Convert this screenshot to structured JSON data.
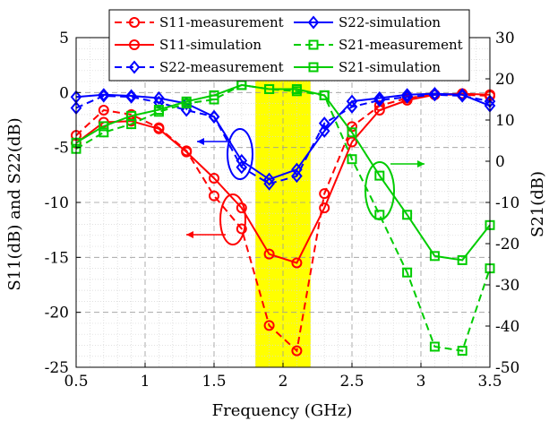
{
  "chart_data": {
    "type": "line",
    "xlabel": "Frequency (GHz)",
    "ylabel_left": "S11(dB) and S22(dB)",
    "ylabel_right": "S21(dB)",
    "xlim": [
      0.5,
      3.5
    ],
    "ylim_left": [
      -25,
      5
    ],
    "ylim_right": [
      -50,
      30
    ],
    "x_ticks": [
      0.5,
      1,
      1.5,
      2,
      2.5,
      3,
      3.5
    ],
    "x_tick_labels": [
      "0.5",
      "1",
      "1.5",
      "2",
      "2.5",
      "3",
      "3.5"
    ],
    "y_left_ticks": [
      -25,
      -20,
      -15,
      -10,
      -5,
      0,
      5
    ],
    "y_left_tick_labels": [
      "-25",
      "-20",
      "-15",
      "-10",
      "-5",
      "0",
      "5"
    ],
    "y_right_ticks": [
      -50,
      -40,
      -30,
      -20,
      -10,
      0,
      10,
      20,
      30
    ],
    "y_right_tick_labels": [
      "-50",
      "-40",
      "-30",
      "-20",
      "-10",
      "0",
      "10",
      "20",
      "30"
    ],
    "grid": true,
    "legend_position": "top",
    "highlight_band": {
      "x": [
        1.8,
        2.2
      ],
      "color": "#ffff00"
    },
    "series": [
      {
        "name": "S11-measurement",
        "axis": "left",
        "color": "#ff0000",
        "dash": "dashed",
        "marker": "circle",
        "x": [
          0.5,
          0.7,
          0.9,
          1.1,
          1.3,
          1.5,
          1.7,
          1.9,
          2.1,
          2.3,
          2.5,
          2.7,
          2.9,
          3.1,
          3.3,
          3.5
        ],
        "y": [
          -3.9,
          -1.6,
          -2.0,
          -3.2,
          -5.3,
          -9.4,
          -12.4,
          -21.2,
          -23.5,
          -9.2,
          -3.1,
          -1.2,
          -0.5,
          -0.2,
          -0.2,
          -0.3
        ]
      },
      {
        "name": "S11-simulation",
        "axis": "left",
        "color": "#ff0000",
        "dash": "solid",
        "marker": "circle",
        "x": [
          0.5,
          0.7,
          0.9,
          1.1,
          1.3,
          1.5,
          1.7,
          1.9,
          2.1,
          2.3,
          2.5,
          2.7,
          2.9,
          3.1,
          3.3,
          3.5
        ],
        "y": [
          -4.6,
          -2.7,
          -2.6,
          -3.3,
          -5.4,
          -7.8,
          -10.5,
          -14.7,
          -15.5,
          -10.5,
          -4.5,
          -1.6,
          -0.7,
          -0.2,
          -0.1,
          -0.2
        ]
      },
      {
        "name": "S22-measurement",
        "axis": "left",
        "color": "#0000ff",
        "dash": "dashed",
        "marker": "diamond",
        "x": [
          0.5,
          0.7,
          0.9,
          1.1,
          1.3,
          1.5,
          1.7,
          1.9,
          2.1,
          2.3,
          2.5,
          2.7,
          2.9,
          3.1,
          3.3,
          3.5
        ],
        "y": [
          -1.4,
          -0.3,
          -0.4,
          -0.9,
          -1.6,
          -2.2,
          -6.8,
          -8.3,
          -7.6,
          -2.8,
          -1.3,
          -0.7,
          -0.4,
          -0.2,
          -0.3,
          -0.8
        ]
      },
      {
        "name": "S22-simulation",
        "axis": "left",
        "color": "#0000ff",
        "dash": "solid",
        "marker": "diamond",
        "x": [
          0.5,
          0.7,
          0.9,
          1.1,
          1.3,
          1.5,
          1.7,
          1.9,
          2.1,
          2.3,
          2.5,
          2.7,
          2.9,
          3.1,
          3.3,
          3.5
        ],
        "y": [
          -0.4,
          -0.2,
          -0.3,
          -0.5,
          -1.0,
          -2.2,
          -6.2,
          -7.9,
          -7.0,
          -3.5,
          -0.8,
          -0.5,
          -0.2,
          -0.1,
          -0.2,
          -1.2
        ]
      },
      {
        "name": "S21-measurement",
        "axis": "right",
        "color": "#00cc00",
        "dash": "dashed",
        "marker": "square",
        "x": [
          0.5,
          0.7,
          0.9,
          1.1,
          1.3,
          1.5,
          1.7,
          1.9,
          2.1,
          2.3,
          2.5,
          2.7,
          2.9,
          3.1,
          3.3,
          3.5
        ],
        "y": [
          3.0,
          7.0,
          9.0,
          12.0,
          14.0,
          15.0,
          18.5,
          17.5,
          17.0,
          16.0,
          0.5,
          -13.0,
          -27.0,
          -45.0,
          -46.0,
          -26.0
        ]
      },
      {
        "name": "S21-simulation",
        "axis": "right",
        "color": "#00cc00",
        "dash": "solid",
        "marker": "square",
        "x": [
          0.5,
          0.7,
          0.9,
          1.1,
          1.3,
          1.5,
          1.7,
          1.9,
          2.1,
          2.3,
          2.5,
          2.7,
          2.9,
          3.1,
          3.3,
          3.5
        ],
        "y": [
          4.5,
          8.5,
          11.0,
          12.5,
          14.5,
          16.0,
          18.5,
          17.5,
          17.5,
          16.0,
          7.0,
          -3.5,
          -13.0,
          -23.0,
          -24.0,
          -15.5
        ]
      }
    ]
  }
}
